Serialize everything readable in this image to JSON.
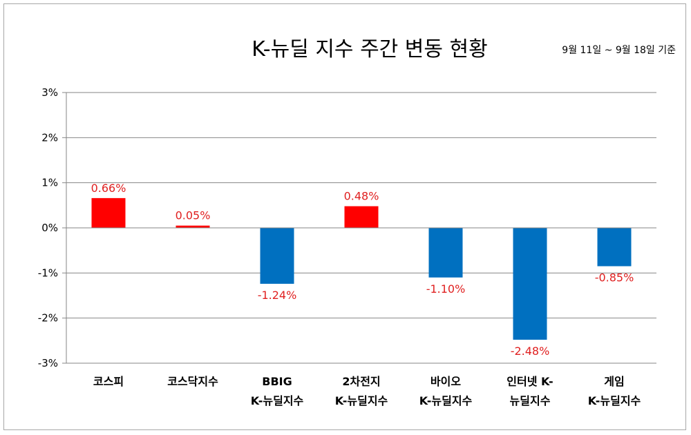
{
  "chart_data": {
    "type": "bar",
    "title": "K-뉴딜 지수 주간 변동 현황",
    "subtitle": "9월 11일 ~ 9월 18일 기준",
    "categories": [
      [
        "코스피"
      ],
      [
        "코스닥지수"
      ],
      [
        "BBIG",
        "K-뉴딜지수"
      ],
      [
        "2차전지",
        "K-뉴딜지수"
      ],
      [
        "바이오",
        "K-뉴딜지수"
      ],
      [
        "인터넷 K-",
        "뉴딜지수"
      ],
      [
        "게임",
        "K-뉴딜지수"
      ]
    ],
    "values": [
      0.66,
      0.05,
      -1.24,
      0.48,
      -1.1,
      -2.48,
      -0.85
    ],
    "data_labels": [
      "0.66%",
      "0.05%",
      "-1.24%",
      "0.48%",
      "-1.10%",
      "-2.48%",
      "-0.85%"
    ],
    "yticks": [
      "3%",
      "2%",
      "1%",
      "0%",
      "-1%",
      "-2%",
      "-3%"
    ],
    "ylim": [
      -3,
      3
    ],
    "grid": true,
    "colors": {
      "positive": "#ff0000",
      "negative": "#0070c0",
      "label": "#e02020"
    }
  }
}
